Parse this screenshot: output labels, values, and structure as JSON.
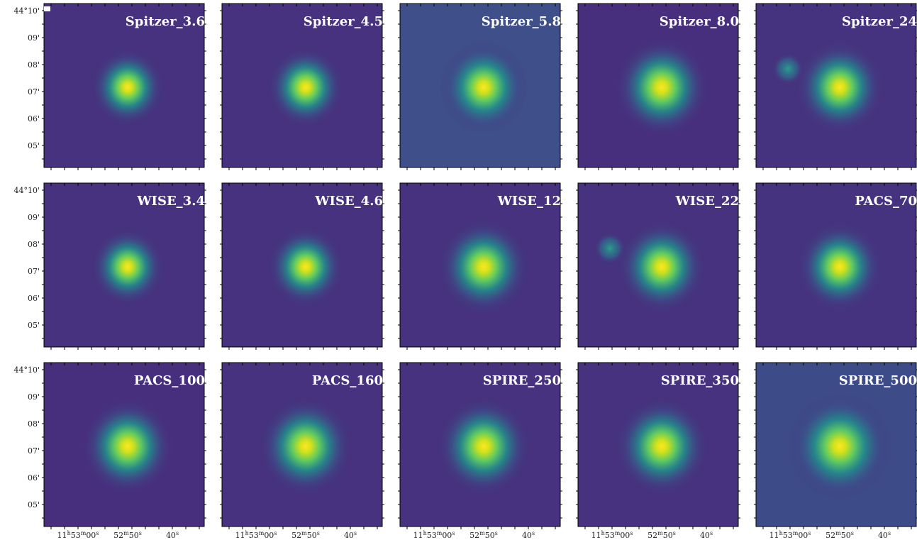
{
  "panels": [
    {
      "title": "Spitzer_3.6"
    },
    {
      "title": "Spitzer_4.5"
    },
    {
      "title": "Spitzer_5.8"
    },
    {
      "title": "Spitzer_8.0"
    },
    {
      "title": "Spitzer_24"
    },
    {
      "title": "WISE_3.4"
    },
    {
      "title": "WISE_4.6"
    },
    {
      "title": "WISE_12"
    },
    {
      "title": "WISE_22"
    },
    {
      "title": "PACS_70"
    },
    {
      "title": "PACS_100"
    },
    {
      "title": "PACS_160"
    },
    {
      "title": "SPIRE_250"
    },
    {
      "title": "SPIRE_350"
    },
    {
      "title": "SPIRE_500"
    }
  ],
  "y_ticks": [
    "44°10'",
    "09'",
    "08'",
    "07'",
    "06'",
    "05'"
  ],
  "x_ticks": [
    [
      "11",
      "h",
      "53",
      "m",
      "00",
      "s"
    ],
    [
      "52",
      "m",
      "50",
      "s"
    ],
    [
      "40",
      "s"
    ]
  ]
}
